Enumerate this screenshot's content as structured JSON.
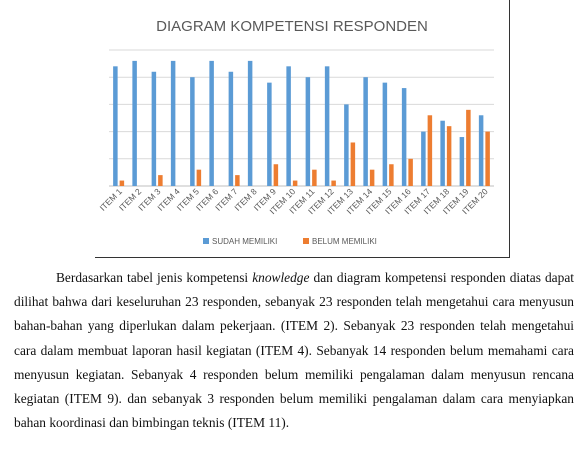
{
  "colors": {
    "series_1": "#5b9bd5",
    "series_2": "#ed7d31",
    "gridline": "#d9d9d9",
    "axis": "#bfbfbf"
  },
  "chart_data": {
    "type": "bar",
    "title": "DIAGRAM KOMPETENSI RESPONDEN",
    "xlabel": "",
    "ylabel": "",
    "ylim": [
      0,
      25
    ],
    "yticks": [
      0,
      5,
      10,
      15,
      20,
      25
    ],
    "grid": true,
    "legend_position": "bottom",
    "categories": [
      "ITEM 1",
      "ITEM 2",
      "ITEM 3",
      "ITEM 4",
      "ITEM 5",
      "ITEM 6",
      "ITEM 7",
      "ITEM 8",
      "ITEM 9",
      "ITEM 10",
      "ITEM 11",
      "ITEM 12",
      "ITEM 13",
      "ITEM 14",
      "ITEM 15",
      "ITEM 16",
      "ITEM 17",
      "ITEM 18",
      "ITEM 19",
      "ITEM 20"
    ],
    "series": [
      {
        "name": "SUDAH MEMILIKI",
        "values": [
          22,
          23,
          21,
          23,
          20,
          23,
          21,
          23,
          19,
          22,
          20,
          22,
          15,
          20,
          19,
          18,
          10,
          12,
          9,
          13
        ]
      },
      {
        "name": "BELUM MEMILIKI",
        "values": [
          1,
          0,
          2,
          0,
          3,
          0,
          2,
          0,
          4,
          1,
          3,
          1,
          8,
          3,
          4,
          5,
          13,
          11,
          14,
          10
        ]
      }
    ]
  },
  "text": {
    "p_intro": "Berdasarkan tabel jenis kompetensi ",
    "p_keyword": "knowledge",
    "p_rest": " dan diagram kompetensi responden diatas dapat dilihat bahwa dari keseluruhan 23 responden, sebanyak 23 responden telah mengetahui cara menyusun bahan-bahan yang diperlukan dalam pekerjaan. (ITEM 2).  Sebanyak 23 responden telah mengetahui cara dalam membuat laporan hasil kegiatan (ITEM 4). Sebanyak 14 responden belum memahami cara menyusun kegiatan. Sebanyak 4 responden belum memiliki pengalaman dalam menyusun rencana kegiatan (ITEM 9). dan sebanyak 3 responden belum memiliki pengalaman dalam cara menyiapkan bahan koordinasi dan bimbingan teknis (ITEM 11)."
  }
}
